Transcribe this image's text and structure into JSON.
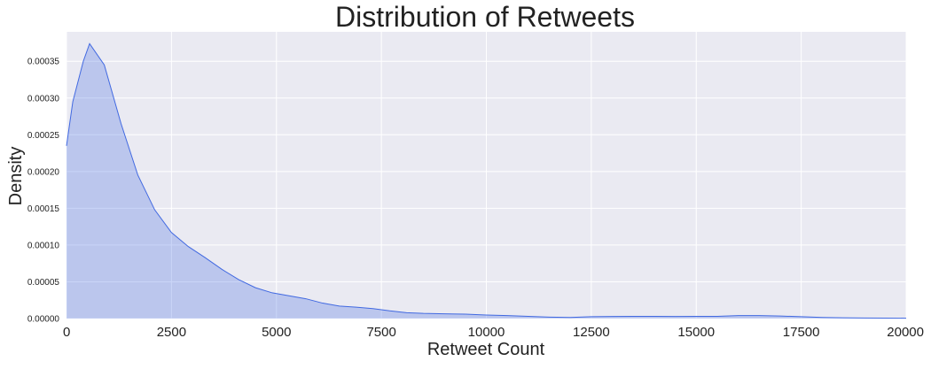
{
  "chart_data": {
    "type": "area",
    "title": "Distribution of Retweets",
    "xlabel": "Retweet Count",
    "ylabel": "Density",
    "xlim": [
      0,
      20000
    ],
    "ylim": [
      0,
      0.00039
    ],
    "grid": true,
    "x_ticks": [
      0,
      2500,
      5000,
      7500,
      10000,
      12500,
      15000,
      17500,
      20000
    ],
    "x_tick_labels": [
      "0",
      "2500",
      "5000",
      "7500",
      "10000",
      "12500",
      "15000",
      "17500",
      "20000"
    ],
    "y_ticks": [
      0,
      5e-05,
      0.0001,
      0.00015,
      0.0002,
      0.00025,
      0.0003,
      0.00035
    ],
    "y_tick_labels": [
      "0.00000",
      "0.00005",
      "0.00010",
      "0.00015",
      "0.00020",
      "0.00025",
      "0.00030",
      "0.00035"
    ],
    "series": [
      {
        "x": [
          0,
          150,
          400,
          550,
          900,
          1300,
          1700,
          2100,
          2500,
          2900,
          3300,
          3700,
          4100,
          4500,
          4900,
          5300,
          5700,
          6100,
          6500,
          6900,
          7300,
          7700,
          8100,
          8500,
          9000,
          9500,
          10000,
          10500,
          11000,
          11500,
          12000,
          12500,
          13000,
          13500,
          14000,
          14500,
          15000,
          15500,
          16000,
          16500,
          17000,
          17500,
          18000,
          18500,
          19000,
          19500,
          20000
        ],
        "y": [
          0.000235,
          0.000295,
          0.00035,
          0.000374,
          0.000345,
          0.000265,
          0.000195,
          0.000148,
          0.000117,
          9.8e-05,
          8.3e-05,
          6.7e-05,
          5.3e-05,
          4.2e-05,
          3.5e-05,
          3.1e-05,
          2.7e-05,
          2.1e-05,
          1.7e-05,
          1.55e-05,
          1.35e-05,
          1.05e-05,
          8e-06,
          7e-06,
          6.5e-06,
          6e-06,
          4.8e-06,
          4e-06,
          3e-06,
          2e-06,
          1.5e-06,
          2.5e-06,
          2.8e-06,
          3e-06,
          3e-06,
          2.8e-06,
          3e-06,
          3e-06,
          4e-06,
          4e-06,
          3.5e-06,
          2.5e-06,
          1.5e-06,
          1e-06,
          8e-07,
          6e-07,
          5e-07
        ]
      }
    ],
    "colors": {
      "line": "#4169E1",
      "fill": "#4169E1",
      "plot_bg": "#EAEAF2",
      "grid": "#FFFFFF",
      "text": "#222222"
    }
  }
}
